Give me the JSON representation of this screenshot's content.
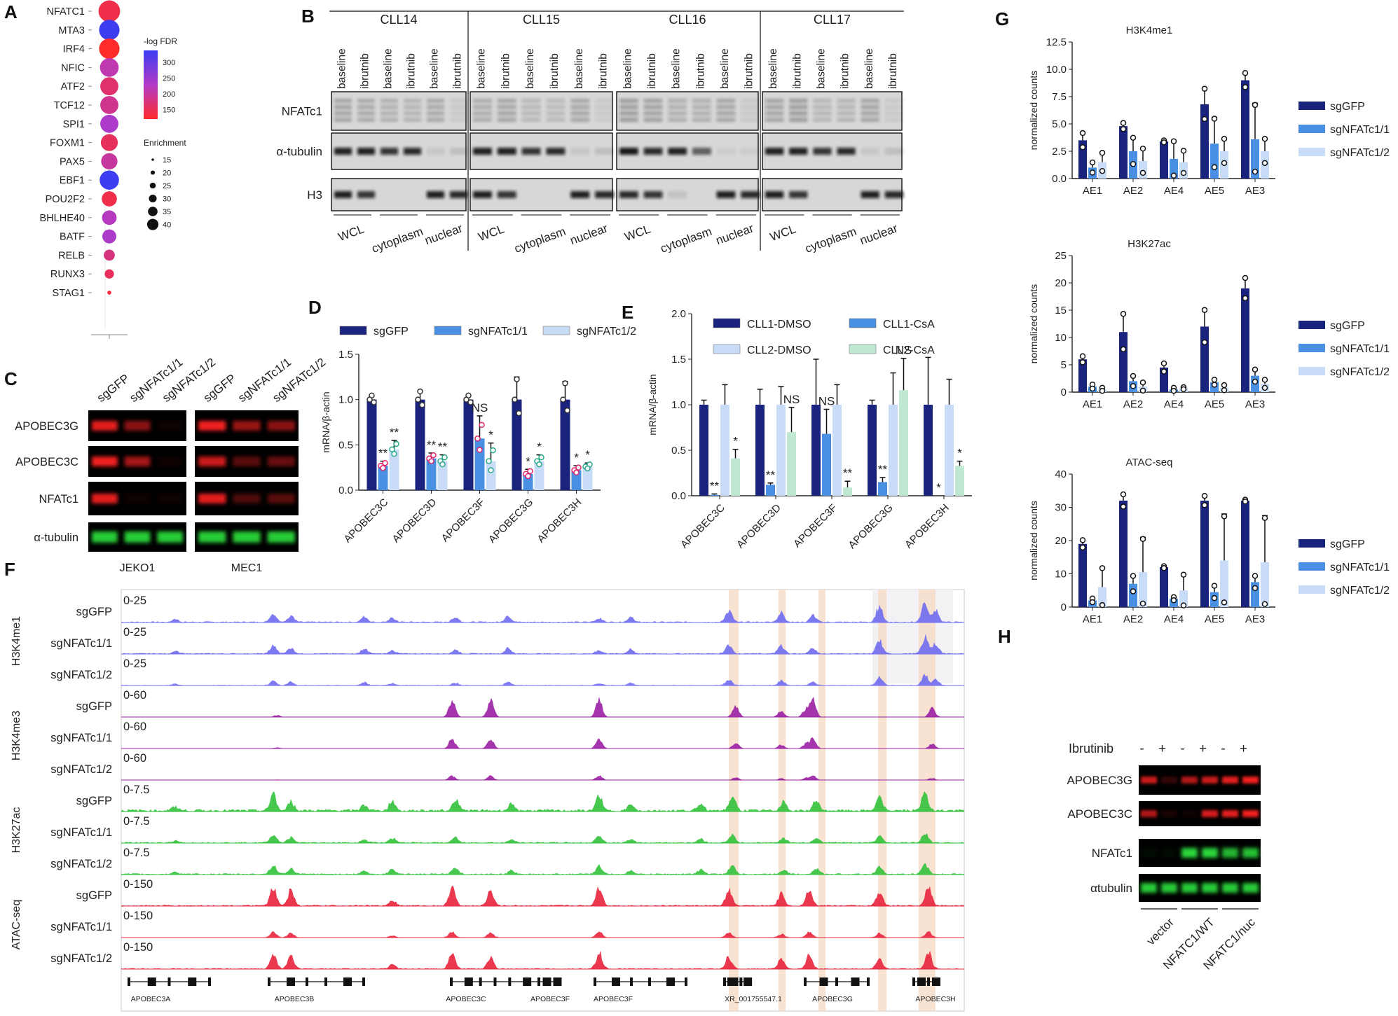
{
  "colors": {
    "navy": "#1a237e",
    "mid_blue": "#4a90e2",
    "light_blue": "#c9dcf7",
    "mint": "#bfe8d3",
    "trackA": "#6f6cf0",
    "trackB": "#9a1fa3",
    "trackC": "#31c23a",
    "trackD": "#e8243c",
    "blot_red": "#ff2222",
    "blot_green": "#29d63a",
    "highlight": "#f6d8c3"
  },
  "panels": {
    "A": "A",
    "B": "B",
    "C": "C",
    "D": "D",
    "E": "E",
    "F": "F",
    "G": "G",
    "H": "H"
  },
  "panel_a": {
    "tfs": [
      "NFATC1",
      "MTA3",
      "IRF4",
      "NFIC",
      "ATF2",
      "TCF12",
      "SPI1",
      "FOXM1",
      "PAX5",
      "EBF1",
      "POU2F2",
      "BHLHE40",
      "BATF",
      "RELB",
      "RUNX3",
      "STAG1"
    ],
    "logfdr": [
      160,
      330,
      140,
      220,
      180,
      200,
      240,
      170,
      210,
      330,
      160,
      230,
      240,
      190,
      170,
      150
    ],
    "enrichment": [
      42,
      40,
      40,
      37,
      36,
      36,
      36,
      34,
      33,
      38,
      31,
      30,
      29,
      24,
      21,
      12
    ],
    "color_legend_title": "-log FDR",
    "color_ticks": [
      "300",
      "250",
      "200",
      "150"
    ],
    "size_legend_title": "Enrichment",
    "size_ticks": [
      "15",
      "20",
      "25",
      "30",
      "35",
      "40"
    ]
  },
  "panel_b": {
    "groups": [
      "CLL14",
      "CLL15",
      "CLL16",
      "CLL17"
    ],
    "lanes": [
      "baseline",
      "ibrutnib",
      "baseline",
      "ibrutnib",
      "baseline",
      "ibrutnib"
    ],
    "rows": [
      "NFATc1",
      "α-tubulin",
      "H3"
    ],
    "fractions": [
      "WCL",
      "cytoplasm",
      "nuclear"
    ]
  },
  "panel_c": {
    "lanes": [
      "sgGFP",
      "sgNFATc1/1",
      "sgNFATc1/2"
    ],
    "rows": [
      "APOBEC3G",
      "APOBEC3C",
      "NFATc1",
      "α-tubulin"
    ],
    "cells": [
      "JEKO1",
      "MEC1"
    ]
  },
  "panel_d": {
    "ylabel": "mRNA/β-actin",
    "yticks": [
      "0.0",
      "0.5",
      "1.0",
      "1.5"
    ],
    "categories": [
      "APOBEC3C",
      "APOBEC3D",
      "APOBEC3F",
      "APOBEC3G",
      "APOBEC3H"
    ],
    "legend": [
      "sgGFP",
      "sgNFATc1/1",
      "sgNFATc1/2"
    ],
    "chart_data": {
      "type": "bar",
      "ylim": [
        0,
        1.5
      ],
      "categories": [
        "APOBEC3C",
        "APOBEC3D",
        "APOBEC3F",
        "APOBEC3G",
        "APOBEC3H"
      ],
      "series": [
        {
          "name": "sgGFP",
          "values": [
            1.0,
            1.0,
            1.0,
            1.0,
            1.0
          ],
          "err": [
            0.05,
            0.1,
            0.05,
            0.25,
            0.2
          ]
        },
        {
          "name": "sgNFATc1/1",
          "values": [
            0.27,
            0.35,
            0.57,
            0.18,
            0.22
          ],
          "err": [
            0.05,
            0.06,
            0.25,
            0.05,
            0.05
          ]
        },
        {
          "name": "sgNFATc1/2",
          "values": [
            0.45,
            0.32,
            0.32,
            0.32,
            0.26
          ],
          "err": [
            0.1,
            0.07,
            0.2,
            0.07,
            0.04
          ]
        }
      ],
      "annotations": [
        {
          "cat": 0,
          "s": 1,
          "text": "**"
        },
        {
          "cat": 0,
          "s": 2,
          "text": "**"
        },
        {
          "cat": 1,
          "s": 1,
          "text": "**"
        },
        {
          "cat": 1,
          "s": 2,
          "text": "**"
        },
        {
          "cat": 2,
          "s": 1,
          "text": "NS"
        },
        {
          "cat": 2,
          "s": 2,
          "text": "*"
        },
        {
          "cat": 3,
          "s": 1,
          "text": "*"
        },
        {
          "cat": 3,
          "s": 2,
          "text": "*"
        },
        {
          "cat": 4,
          "s": 1,
          "text": "*"
        },
        {
          "cat": 4,
          "s": 2,
          "text": "*"
        }
      ]
    }
  },
  "panel_e": {
    "ylabel": "mRNA/β-actin",
    "yticks": [
      "0.0",
      "0.5",
      "1.0",
      "1.5",
      "2.0"
    ],
    "categories": [
      "APOBEC3C",
      "APOBEC3D",
      "APOBEC3F",
      "APOBEC3G",
      "APOBEC3H"
    ],
    "legend": [
      "CLL1-DMSO",
      "CLL1-CsA",
      "CLL2-DMSO",
      "CLL2-CsA"
    ],
    "chart_data": {
      "type": "bar",
      "ylim": [
        0,
        2.0
      ],
      "categories": [
        "APOBEC3C",
        "APOBEC3D",
        "APOBEC3F",
        "APOBEC3G",
        "APOBEC3H"
      ],
      "series": [
        {
          "name": "CLL1-DMSO",
          "values": [
            1.0,
            1.0,
            1.0,
            1.0,
            1.0
          ],
          "err": [
            0.05,
            0.17,
            0.5,
            0.05,
            0.52
          ]
        },
        {
          "name": "CLL1-CsA",
          "values": [
            0.01,
            0.12,
            0.68,
            0.15,
            0.0
          ],
          "err": [
            0.01,
            0.02,
            0.27,
            0.05,
            0.0
          ]
        },
        {
          "name": "CLL2-DMSO",
          "values": [
            1.0,
            1.0,
            1.0,
            1.0,
            1.0
          ],
          "err": [
            0.22,
            0.2,
            0.22,
            0.35,
            0.28
          ]
        },
        {
          "name": "CLL2-CsA",
          "values": [
            0.41,
            0.7,
            0.09,
            1.16,
            0.33
          ],
          "err": [
            0.1,
            0.27,
            0.07,
            0.35,
            0.05
          ]
        }
      ],
      "annotations": [
        {
          "cat": 0,
          "s": 1,
          "text": "**"
        },
        {
          "cat": 0,
          "s": 3,
          "text": "*"
        },
        {
          "cat": 1,
          "s": 1,
          "text": "**"
        },
        {
          "cat": 1,
          "s": 3,
          "text": "NS"
        },
        {
          "cat": 2,
          "s": 1,
          "text": "NS"
        },
        {
          "cat": 2,
          "s": 3,
          "text": "**"
        },
        {
          "cat": 3,
          "s": 1,
          "text": "**"
        },
        {
          "cat": 3,
          "s": 3,
          "text": "NS"
        },
        {
          "cat": 4,
          "s": 1,
          "text": "*"
        },
        {
          "cat": 4,
          "s": 3,
          "text": "*"
        }
      ]
    }
  },
  "panel_f": {
    "marks": [
      "H3K4me1",
      "H3K4me3",
      "H3K27ac",
      "ATAC-seq"
    ],
    "samples": [
      "sgGFP",
      "sgNFATc1/1",
      "sgNFATc1/2"
    ],
    "ranges": [
      "0-25",
      "0-60",
      "0-7.5",
      "0-150"
    ],
    "genes": [
      "APOBEC3A",
      "APOBEC3B",
      "APOBEC3C",
      "APOBEC3F",
      "APOBEC3F",
      "XR_001755547.1",
      "APOBEC3G",
      "APOBEC3H"
    ]
  },
  "panel_g": {
    "ylabel": "normalized counts",
    "categories": [
      "AE1",
      "AE2",
      "AE4",
      "AE5",
      "AE3"
    ],
    "legend": [
      "sgGFP",
      "sgNFATc1/1",
      "sgNFATc1/2"
    ],
    "chart_data": [
      {
        "type": "bar",
        "title": "H3K4me1",
        "ylim": [
          0,
          12.5
        ],
        "yticks": [
          "0.0",
          "2.5",
          "5.0",
          "7.5",
          "10.0",
          "12.5"
        ],
        "categories": [
          "AE1",
          "AE2",
          "AE4",
          "AE5",
          "AE3"
        ],
        "series": [
          {
            "name": "sgGFP",
            "values": [
              3.5,
              4.8,
              3.4,
              6.8,
              9.0
            ],
            "err": [
              0.7,
              0.3,
              0.1,
              1.5,
              0.7
            ]
          },
          {
            "name": "sgNFATc1/1",
            "values": [
              1.0,
              2.5,
              1.8,
              3.2,
              3.6
            ],
            "err": [
              0.5,
              1.3,
              1.7,
              2.4,
              3.3
            ]
          },
          {
            "name": "sgNFATc1/2",
            "values": [
              1.5,
              1.6,
              1.5,
              2.5,
              2.5
            ],
            "err": [
              0.9,
              1.2,
              1.1,
              1.2,
              1.2
            ]
          }
        ]
      },
      {
        "type": "bar",
        "title": "H3K27ac",
        "ylim": [
          0,
          25
        ],
        "yticks": [
          "0",
          "5",
          "10",
          "15",
          "20",
          "25"
        ],
        "categories": [
          "AE1",
          "AE2",
          "AE4",
          "AE5",
          "AE3"
        ],
        "series": [
          {
            "name": "sgGFP",
            "values": [
              6.0,
              11.0,
              4.5,
              12.0,
              19.0
            ],
            "err": [
              0.6,
              3.5,
              0.8,
              3.2,
              2.0
            ]
          },
          {
            "name": "sgNFATc1/1",
            "values": [
              1.0,
              2.0,
              0.5,
              1.8,
              3.0
            ],
            "err": [
              0.4,
              1.0,
              0.3,
              0.5,
              1.2
            ]
          },
          {
            "name": "sgNFATc1/2",
            "values": [
              0.5,
              1.0,
              0.7,
              0.8,
              1.5
            ],
            "err": [
              0.3,
              0.8,
              0.2,
              0.5,
              0.8
            ]
          }
        ]
      },
      {
        "type": "bar",
        "title": "ATAC-seq",
        "ylim": [
          0,
          40
        ],
        "yticks": [
          "0",
          "10",
          "20",
          "30",
          "40"
        ],
        "categories": [
          "AE1",
          "AE2",
          "AE4",
          "AE5",
          "AE3"
        ],
        "series": [
          {
            "name": "sgGFP",
            "values": [
              19.0,
              32.0,
              12.0,
              32.0,
              32.0
            ],
            "err": [
              1.2,
              2.0,
              0.3,
              1.5,
              0.3
            ]
          },
          {
            "name": "sgNFATc1/1",
            "values": [
              2.0,
              7.0,
              2.5,
              4.5,
              7.5
            ],
            "err": [
              0.6,
              2.5,
              0.5,
              2.0,
              2.0
            ]
          },
          {
            "name": "sgNFATc1/2",
            "values": [
              6.0,
              10.5,
              5.0,
              14.0,
              13.5
            ],
            "err": [
              6.0,
              10.5,
              5.0,
              14.0,
              14.0
            ]
          }
        ]
      }
    ]
  },
  "panel_h": {
    "treatment_label": "Ibrutinib",
    "signs": [
      "-",
      "+",
      "-",
      "+",
      "-",
      "+"
    ],
    "rows": [
      "APOBEC3G",
      "APOBEC3C",
      "NFATc1",
      "αtubulin"
    ],
    "groups": [
      "vector",
      "NFATC1/WT",
      "NFATC1/nuc"
    ]
  }
}
